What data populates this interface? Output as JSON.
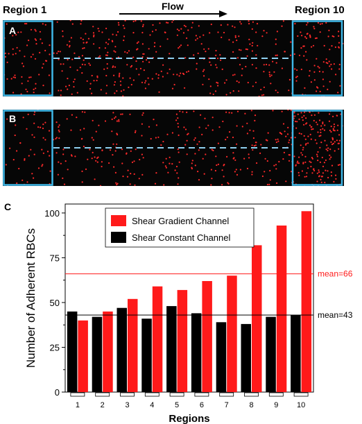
{
  "header": {
    "region_left": "Region 1",
    "region_right": "Region 10",
    "flow_label": "Flow"
  },
  "panels": {
    "a_label": "A",
    "b_label": "B",
    "c_label": "C"
  },
  "colors": {
    "gradient": "#ff1a1a",
    "constant": "#000000",
    "highlight_box": "#3fb8e8",
    "dots": "#ff2a2a",
    "channel_bg": "#060606"
  },
  "chart_data": {
    "type": "bar",
    "categories": [
      "1",
      "2",
      "3",
      "4",
      "5",
      "6",
      "7",
      "8",
      "9",
      "10"
    ],
    "series": [
      {
        "name": "Shear Gradient Channel",
        "color": "#ff1a1a",
        "values": [
          40,
          45,
          52,
          59,
          57,
          62,
          65,
          82,
          93,
          101
        ]
      },
      {
        "name": "Shear Constant Channel",
        "color": "#000000",
        "values": [
          45,
          42,
          47,
          41,
          48,
          44,
          39,
          38,
          42,
          43
        ]
      }
    ],
    "xlabel": "Regions",
    "ylabel": "Number of Adherent RBCs",
    "ylim": [
      0,
      105
    ],
    "yticks": [
      0,
      25,
      50,
      75,
      100
    ],
    "legend": "top-center",
    "mean_lines": [
      {
        "value": 66,
        "label": "mean=66",
        "color": "#ff1a1a"
      },
      {
        "value": 43,
        "label": "mean=43",
        "color": "#000000"
      }
    ]
  }
}
